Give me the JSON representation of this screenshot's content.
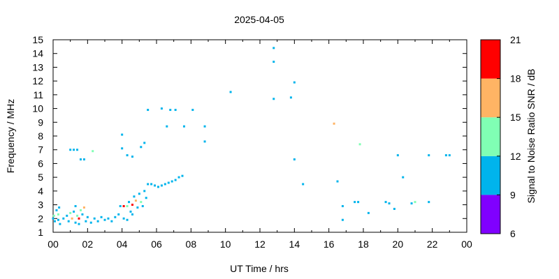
{
  "chart_data": {
    "type": "scatter",
    "title": "2025-04-05",
    "xlabel": "UT Time / hrs",
    "ylabel": "Frequency / MHz",
    "xlim": [
      0,
      24
    ],
    "ylim": [
      1,
      15
    ],
    "xticks": [
      "00",
      "02",
      "04",
      "06",
      "08",
      "10",
      "12",
      "14",
      "16",
      "18",
      "20",
      "22",
      "00"
    ],
    "yticks": [
      "1",
      "2",
      "3",
      "4",
      "5",
      "6",
      "7",
      "8",
      "9",
      "10",
      "11",
      "12",
      "13",
      "14",
      "15"
    ],
    "grid": false,
    "colorbar": {
      "label": "Signal to Noise Ratio SNR / dB",
      "min": 6,
      "max": 21,
      "ticks": [
        "6",
        "9",
        "12",
        "15",
        "18",
        "21"
      ],
      "bands": [
        {
          "from": 6,
          "to": 9,
          "color": "#8000ff"
        },
        {
          "from": 9,
          "to": 12,
          "color": "#00b4ec"
        },
        {
          "from": 12,
          "to": 15,
          "color": "#80ffb4"
        },
        {
          "from": 15,
          "to": 18,
          "color": "#ffb464"
        },
        {
          "from": 18,
          "to": 21,
          "color": "#ff0000"
        }
      ]
    },
    "points": [
      {
        "x": 0.0,
        "y": 2.0,
        "snr": 10
      },
      {
        "x": 0.05,
        "y": 2.2,
        "snr": 13
      },
      {
        "x": 0.1,
        "y": 1.8,
        "snr": 10
      },
      {
        "x": 0.2,
        "y": 2.6,
        "snr": 10
      },
      {
        "x": 0.3,
        "y": 2.3,
        "snr": 13
      },
      {
        "x": 0.3,
        "y": 1.9,
        "snr": 10
      },
      {
        "x": 0.35,
        "y": 2.8,
        "snr": 10
      },
      {
        "x": 0.4,
        "y": 1.6,
        "snr": 10
      },
      {
        "x": 0.6,
        "y": 2.0,
        "snr": 10
      },
      {
        "x": 0.8,
        "y": 2.2,
        "snr": 10
      },
      {
        "x": 0.9,
        "y": 1.8,
        "snr": 10
      },
      {
        "x": 1.0,
        "y": 2.4,
        "snr": 13
      },
      {
        "x": 1.1,
        "y": 2.0,
        "snr": 16
      },
      {
        "x": 1.2,
        "y": 2.5,
        "snr": 10
      },
      {
        "x": 1.3,
        "y": 2.9,
        "snr": 10
      },
      {
        "x": 1.3,
        "y": 1.7,
        "snr": 10
      },
      {
        "x": 1.4,
        "y": 2.2,
        "snr": 13
      },
      {
        "x": 1.5,
        "y": 2.0,
        "snr": 19
      },
      {
        "x": 1.5,
        "y": 1.6,
        "snr": 10
      },
      {
        "x": 1.6,
        "y": 2.6,
        "snr": 13
      },
      {
        "x": 1.7,
        "y": 2.3,
        "snr": 10
      },
      {
        "x": 1.8,
        "y": 2.8,
        "snr": 16
      },
      {
        "x": 1.9,
        "y": 1.8,
        "snr": 10
      },
      {
        "x": 2.0,
        "y": 2.1,
        "snr": 10
      },
      {
        "x": 2.2,
        "y": 1.7,
        "snr": 10
      },
      {
        "x": 2.4,
        "y": 2.0,
        "snr": 10
      },
      {
        "x": 2.6,
        "y": 1.8,
        "snr": 10
      },
      {
        "x": 2.8,
        "y": 2.1,
        "snr": 10
      },
      {
        "x": 3.0,
        "y": 1.9,
        "snr": 10
      },
      {
        "x": 3.2,
        "y": 2.0,
        "snr": 10
      },
      {
        "x": 3.4,
        "y": 1.8,
        "snr": 10
      },
      {
        "x": 3.6,
        "y": 2.1,
        "snr": 10
      },
      {
        "x": 3.8,
        "y": 2.3,
        "snr": 10
      },
      {
        "x": 3.9,
        "y": 2.9,
        "snr": 10
      },
      {
        "x": 4.1,
        "y": 2.0,
        "snr": 10
      },
      {
        "x": 4.1,
        "y": 2.9,
        "snr": 19
      },
      {
        "x": 4.3,
        "y": 2.9,
        "snr": 13
      },
      {
        "x": 4.3,
        "y": 1.9,
        "snr": 10
      },
      {
        "x": 4.4,
        "y": 3.2,
        "snr": 10
      },
      {
        "x": 4.5,
        "y": 2.5,
        "snr": 10
      },
      {
        "x": 4.6,
        "y": 3.0,
        "snr": 19
      },
      {
        "x": 4.6,
        "y": 2.3,
        "snr": 10
      },
      {
        "x": 4.7,
        "y": 3.6,
        "snr": 10
      },
      {
        "x": 4.8,
        "y": 3.3,
        "snr": 16
      },
      {
        "x": 4.9,
        "y": 2.8,
        "snr": 10
      },
      {
        "x": 5.0,
        "y": 3.8,
        "snr": 10
      },
      {
        "x": 5.1,
        "y": 3.2,
        "snr": 13
      },
      {
        "x": 5.2,
        "y": 2.9,
        "snr": 10
      },
      {
        "x": 5.3,
        "y": 4.0,
        "snr": 10
      },
      {
        "x": 5.4,
        "y": 3.5,
        "snr": 10
      },
      {
        "x": 5.5,
        "y": 4.5,
        "snr": 10
      },
      {
        "x": 5.7,
        "y": 4.5,
        "snr": 10
      },
      {
        "x": 5.9,
        "y": 4.4,
        "snr": 10
      },
      {
        "x": 6.1,
        "y": 4.3,
        "snr": 10
      },
      {
        "x": 6.3,
        "y": 4.4,
        "snr": 10
      },
      {
        "x": 6.5,
        "y": 4.5,
        "snr": 10
      },
      {
        "x": 6.7,
        "y": 4.6,
        "snr": 10
      },
      {
        "x": 6.9,
        "y": 4.7,
        "snr": 10
      },
      {
        "x": 7.1,
        "y": 4.8,
        "snr": 10
      },
      {
        "x": 7.3,
        "y": 5.0,
        "snr": 10
      },
      {
        "x": 7.5,
        "y": 5.1,
        "snr": 10
      },
      {
        "x": 1.0,
        "y": 7.0,
        "snr": 10
      },
      {
        "x": 1.2,
        "y": 7.0,
        "snr": 10
      },
      {
        "x": 1.4,
        "y": 7.0,
        "snr": 10
      },
      {
        "x": 1.6,
        "y": 6.3,
        "snr": 10
      },
      {
        "x": 1.8,
        "y": 6.3,
        "snr": 10
      },
      {
        "x": 2.3,
        "y": 6.9,
        "snr": 13
      },
      {
        "x": 4.0,
        "y": 8.1,
        "snr": 10
      },
      {
        "x": 4.0,
        "y": 7.1,
        "snr": 10
      },
      {
        "x": 4.3,
        "y": 6.6,
        "snr": 10
      },
      {
        "x": 4.6,
        "y": 6.5,
        "snr": 10
      },
      {
        "x": 5.1,
        "y": 7.2,
        "snr": 10
      },
      {
        "x": 5.3,
        "y": 7.5,
        "snr": 10
      },
      {
        "x": 5.5,
        "y": 9.9,
        "snr": 10
      },
      {
        "x": 6.3,
        "y": 10.0,
        "snr": 10
      },
      {
        "x": 6.6,
        "y": 8.7,
        "snr": 10
      },
      {
        "x": 6.8,
        "y": 9.9,
        "snr": 10
      },
      {
        "x": 7.1,
        "y": 9.9,
        "snr": 10
      },
      {
        "x": 7.6,
        "y": 8.7,
        "snr": 10
      },
      {
        "x": 8.1,
        "y": 9.9,
        "snr": 10
      },
      {
        "x": 8.8,
        "y": 8.7,
        "snr": 10
      },
      {
        "x": 8.8,
        "y": 7.6,
        "snr": 10
      },
      {
        "x": 10.3,
        "y": 11.2,
        "snr": 10
      },
      {
        "x": 12.8,
        "y": 14.4,
        "snr": 10
      },
      {
        "x": 12.8,
        "y": 13.4,
        "snr": 10
      },
      {
        "x": 12.8,
        "y": 10.7,
        "snr": 10
      },
      {
        "x": 13.8,
        "y": 10.8,
        "snr": 10
      },
      {
        "x": 14.0,
        "y": 11.9,
        "snr": 10
      },
      {
        "x": 14.0,
        "y": 6.3,
        "snr": 10
      },
      {
        "x": 14.5,
        "y": 4.5,
        "snr": 10
      },
      {
        "x": 16.3,
        "y": 8.9,
        "snr": 16
      },
      {
        "x": 16.5,
        "y": 4.7,
        "snr": 10
      },
      {
        "x": 16.8,
        "y": 2.9,
        "snr": 10
      },
      {
        "x": 16.8,
        "y": 1.9,
        "snr": 10
      },
      {
        "x": 17.5,
        "y": 3.2,
        "snr": 10
      },
      {
        "x": 17.7,
        "y": 3.2,
        "snr": 10
      },
      {
        "x": 17.8,
        "y": 7.4,
        "snr": 13
      },
      {
        "x": 18.3,
        "y": 2.4,
        "snr": 10
      },
      {
        "x": 19.3,
        "y": 3.2,
        "snr": 10
      },
      {
        "x": 19.5,
        "y": 3.1,
        "snr": 10
      },
      {
        "x": 19.8,
        "y": 2.7,
        "snr": 10
      },
      {
        "x": 20.0,
        "y": 6.6,
        "snr": 10
      },
      {
        "x": 20.3,
        "y": 5.0,
        "snr": 10
      },
      {
        "x": 20.8,
        "y": 3.1,
        "snr": 10
      },
      {
        "x": 21.0,
        "y": 3.2,
        "snr": 13
      },
      {
        "x": 21.8,
        "y": 3.2,
        "snr": 10
      },
      {
        "x": 21.8,
        "y": 6.6,
        "snr": 10
      },
      {
        "x": 22.8,
        "y": 6.6,
        "snr": 10
      },
      {
        "x": 23.0,
        "y": 6.6,
        "snr": 10
      }
    ]
  }
}
